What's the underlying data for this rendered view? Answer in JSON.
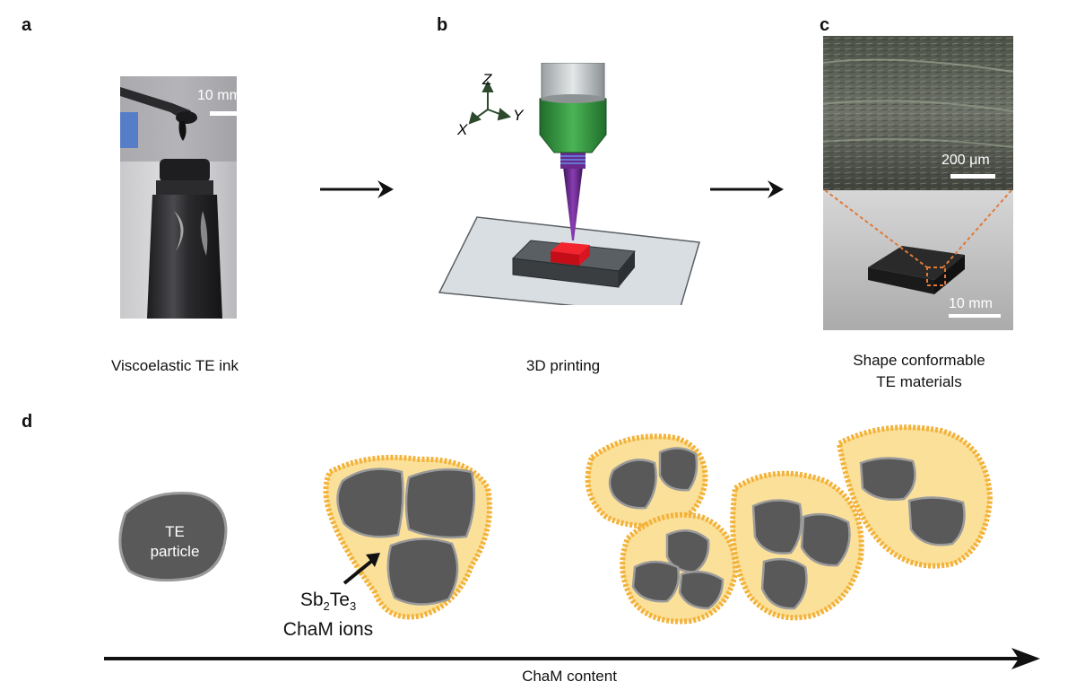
{
  "panels": {
    "a": {
      "letter": "a",
      "caption": "Viscoelastic TE ink",
      "scalebar": "10 mm"
    },
    "b": {
      "letter": "b",
      "caption": "3D printing",
      "axes": {
        "z": "Z",
        "x": "X",
        "y": "Y"
      }
    },
    "c": {
      "letter": "c",
      "caption_line1": "Shape conformable",
      "caption_line2": "TE materials",
      "scalebar_top": "200 μm",
      "scalebar_bottom": "10 mm"
    },
    "d": {
      "letter": "d",
      "particle_label_line1": "TE",
      "particle_label_line2": "particle",
      "ion_label_sb": "Sb",
      "ion_label_sub1": "2",
      "ion_label_te": "Te",
      "ion_label_sub2": "3",
      "ion_label_line2": "ChaM ions",
      "axis_label": "ChaM content"
    }
  },
  "colors": {
    "particle": "#595959",
    "particle_edge": "#9a9a9a",
    "shell_outer": "#f3b23a",
    "shell_inner": "#fbe09a",
    "syringe_green": "#2f8a3a",
    "nozzle_purple": "#6a2a8c",
    "print_red": "#e8101c",
    "glass": "#d8dde2",
    "zoom_dash": "#e07a38"
  }
}
